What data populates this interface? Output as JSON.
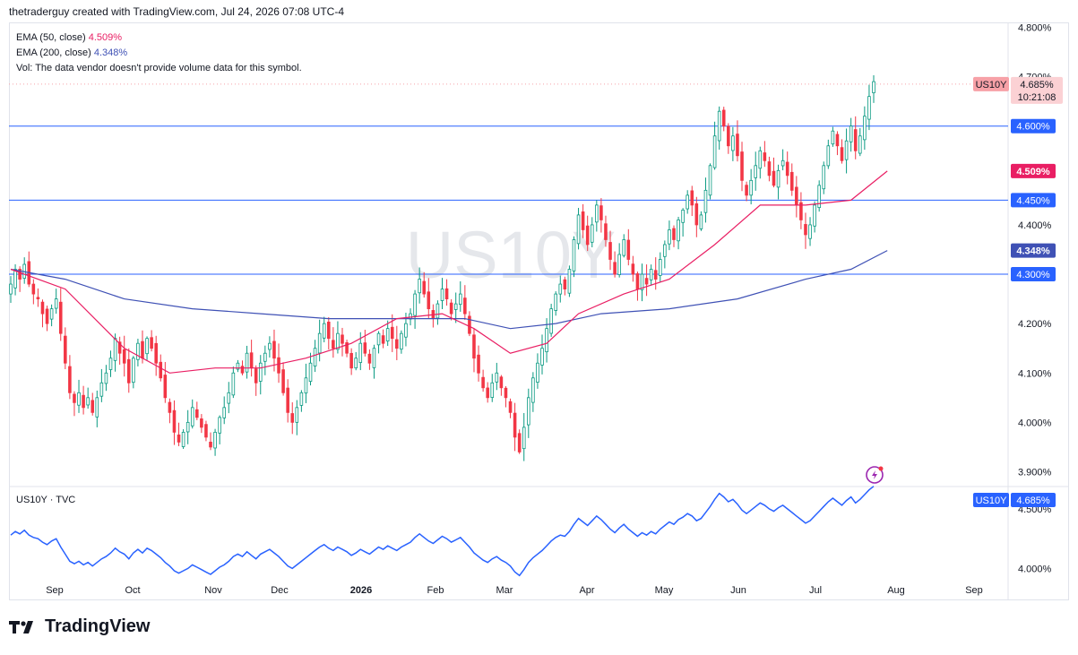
{
  "header": {
    "attribution": "thetraderguy created with TradingView.com, Jul 24, 2026 07:08 UTC-4"
  },
  "legend": {
    "ema50_label": "EMA (50, close)",
    "ema50_value": "4.509%",
    "ema200_label": "EMA (200, close)",
    "ema200_value": "4.348%",
    "vol_note": "Vol: The data vendor doesn't provide volume data for this symbol."
  },
  "watermark": "US10Y",
  "lower_pane": {
    "label": "US10Y · TVC"
  },
  "footer": {
    "brand": "TradingView"
  },
  "colors": {
    "up": "#089981",
    "down": "#f23645",
    "ema50": "#e91e63",
    "ema200": "#3f51b5",
    "hline": "#2962ff",
    "line": "#2962ff",
    "price_tag": "#f7a1a7"
  },
  "chart_data": [
    {
      "type": "candlestick",
      "symbol": "US10Y",
      "title": "",
      "ylabel": "",
      "ylim": [
        3.87,
        4.81
      ],
      "y_ticks": [
        "4.800%",
        "4.700%",
        "4.400%",
        "4.200%",
        "4.100%",
        "4.000%",
        "3.900%"
      ],
      "x_ticks": [
        "Sep",
        "Oct",
        "Nov",
        "Dec",
        "2026",
        "Feb",
        "Mar",
        "Apr",
        "May",
        "Jun",
        "Jul",
        "Aug",
        "Sep"
      ],
      "grid": false,
      "current_price": {
        "label": "US10Y",
        "value": "4.685%",
        "countdown": "10:21:08",
        "price": 4.685
      },
      "horizontal_lines": [
        {
          "price": 4.6,
          "label": "4.600%"
        },
        {
          "price": 4.45,
          "label": "4.450%"
        },
        {
          "price": 4.3,
          "label": "4.300%"
        }
      ],
      "ema_tags": [
        {
          "name": "EMA 50",
          "price": 4.509,
          "label": "4.509%"
        },
        {
          "name": "EMA 200",
          "price": 4.348,
          "label": "4.348%"
        }
      ],
      "series_close": [
        4.28,
        4.31,
        4.29,
        4.32,
        4.28,
        4.26,
        4.25,
        4.22,
        4.2,
        4.23,
        4.25,
        4.18,
        4.12,
        4.06,
        4.04,
        4.06,
        4.03,
        4.05,
        4.02,
        4.05,
        4.08,
        4.1,
        4.13,
        4.17,
        4.14,
        4.12,
        4.08,
        4.13,
        4.16,
        4.13,
        4.17,
        4.15,
        4.12,
        4.09,
        4.05,
        4.02,
        3.98,
        3.96,
        3.98,
        4.0,
        4.03,
        4.01,
        3.99,
        3.97,
        3.95,
        3.98,
        4.01,
        4.03,
        4.06,
        4.1,
        4.12,
        4.1,
        4.14,
        4.11,
        4.08,
        4.12,
        4.14,
        4.16,
        4.13,
        4.1,
        4.06,
        4.02,
        4.0,
        4.03,
        4.06,
        4.09,
        4.12,
        4.15,
        4.18,
        4.2,
        4.17,
        4.15,
        4.18,
        4.16,
        4.14,
        4.11,
        4.13,
        4.16,
        4.14,
        4.12,
        4.15,
        4.18,
        4.16,
        4.19,
        4.17,
        4.15,
        4.18,
        4.2,
        4.22,
        4.26,
        4.29,
        4.26,
        4.23,
        4.21,
        4.24,
        4.27,
        4.25,
        4.22,
        4.24,
        4.26,
        4.22,
        4.18,
        4.13,
        4.1,
        4.07,
        4.05,
        4.08,
        4.1,
        4.07,
        4.05,
        4.02,
        3.97,
        3.94,
        3.99,
        4.05,
        4.09,
        4.12,
        4.15,
        4.19,
        4.23,
        4.26,
        4.28,
        4.27,
        4.31,
        4.37,
        4.42,
        4.39,
        4.36,
        4.4,
        4.44,
        4.41,
        4.37,
        4.33,
        4.3,
        4.34,
        4.37,
        4.33,
        4.3,
        4.27,
        4.3,
        4.28,
        4.31,
        4.29,
        4.33,
        4.36,
        4.39,
        4.37,
        4.41,
        4.43,
        4.46,
        4.44,
        4.4,
        4.42,
        4.47,
        4.52,
        4.58,
        4.63,
        4.6,
        4.56,
        4.58,
        4.54,
        4.49,
        4.46,
        4.49,
        4.52,
        4.55,
        4.53,
        4.5,
        4.48,
        4.51,
        4.53,
        4.5,
        4.47,
        4.44,
        4.41,
        4.38,
        4.4,
        4.44,
        4.48,
        4.52,
        4.56,
        4.59,
        4.56,
        4.53,
        4.57,
        4.6,
        4.55,
        4.58,
        4.62,
        4.66,
        4.69
      ],
      "ema50_points": [
        [
          0,
          4.31
        ],
        [
          12,
          4.27
        ],
        [
          25,
          4.15
        ],
        [
          35,
          4.1
        ],
        [
          45,
          4.11
        ],
        [
          55,
          4.11
        ],
        [
          65,
          4.13
        ],
        [
          75,
          4.16
        ],
        [
          85,
          4.21
        ],
        [
          95,
          4.22
        ],
        [
          102,
          4.19
        ],
        [
          110,
          4.14
        ],
        [
          118,
          4.16
        ],
        [
          125,
          4.22
        ],
        [
          135,
          4.26
        ],
        [
          145,
          4.29
        ],
        [
          155,
          4.36
        ],
        [
          165,
          4.44
        ],
        [
          175,
          4.44
        ],
        [
          185,
          4.45
        ],
        [
          193,
          4.509
        ]
      ],
      "ema200_points": [
        [
          0,
          4.31
        ],
        [
          12,
          4.29
        ],
        [
          25,
          4.25
        ],
        [
          40,
          4.23
        ],
        [
          55,
          4.22
        ],
        [
          70,
          4.21
        ],
        [
          85,
          4.21
        ],
        [
          100,
          4.21
        ],
        [
          110,
          4.19
        ],
        [
          120,
          4.2
        ],
        [
          130,
          4.22
        ],
        [
          145,
          4.23
        ],
        [
          160,
          4.25
        ],
        [
          175,
          4.29
        ],
        [
          185,
          4.31
        ],
        [
          193,
          4.348
        ]
      ]
    },
    {
      "type": "line",
      "name": "",
      "symbol": "US10Y · TVC",
      "ylim": [
        3.92,
        4.65
      ],
      "y_ticks": [
        "4.500%",
        "4.000%"
      ],
      "last_value": {
        "label": "US10Y",
        "value": "4.685%"
      }
    }
  ]
}
